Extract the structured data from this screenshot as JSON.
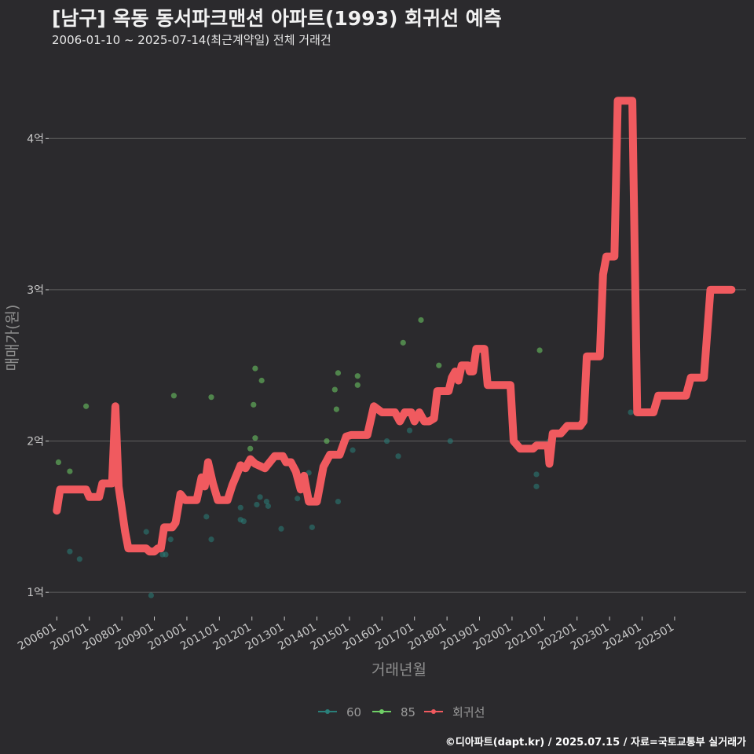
{
  "header": {
    "title": "[남구] 옥동 동서파크맨션 아파트(1993) 회귀선 예측",
    "subtitle": "2006-01-10 ~ 2025-07-14(최근계약일) 전체 거래건"
  },
  "footer": {
    "caption": "©디아파트(dapt.kr) / 2025.07.15 / 자료=국토교통부 실거래가"
  },
  "colors": {
    "background": "#2b2a2d",
    "grid": "#5f5f5f",
    "series_60": "#2a7f7a",
    "series_85": "#6fcf66",
    "regression": "#f05a5f",
    "axis_text": "#c8c8c8"
  },
  "chart_data": {
    "type": "scatter",
    "title": "[남구] 옥동 동서파크맨션 아파트(1993) 회귀선 예측",
    "xlabel": "거래년월",
    "ylabel": "매매가(원)",
    "x_tick_labels": [
      "200601",
      "200701",
      "200801",
      "200901",
      "201001",
      "201101",
      "201201",
      "201301",
      "201401",
      "201501",
      "201601",
      "201701",
      "201801",
      "201901",
      "202001",
      "202101",
      "202201",
      "202301",
      "202401",
      "202501"
    ],
    "y_ticks": [
      1,
      2,
      3,
      4
    ],
    "y_tick_labels": [
      "1억",
      "2억",
      "3억",
      "4억"
    ],
    "y_unit": "억",
    "xlim": [
      2005.75,
      2027.2
    ],
    "ylim": [
      0.84,
      4.5
    ],
    "legend": {
      "position": "bottom",
      "entries": [
        "60",
        "85",
        "회귀선"
      ]
    },
    "series": [
      {
        "name": "60",
        "kind": "points",
        "points": [
          [
            2006.4,
            1.27
          ],
          [
            2006.7,
            1.22
          ],
          [
            2008.9,
            0.98
          ],
          [
            2008.75,
            1.4
          ],
          [
            2009.25,
            1.25
          ],
          [
            2009.35,
            1.25
          ],
          [
            2009.5,
            1.35
          ],
          [
            2010.6,
            1.5
          ],
          [
            2010.75,
            1.35
          ],
          [
            2011.65,
            1.56
          ],
          [
            2011.65,
            1.48
          ],
          [
            2011.75,
            1.47
          ],
          [
            2012.15,
            1.58
          ],
          [
            2012.25,
            1.63
          ],
          [
            2012.45,
            1.6
          ],
          [
            2012.5,
            1.57
          ],
          [
            2012.9,
            1.42
          ],
          [
            2013.4,
            1.62
          ],
          [
            2013.75,
            1.79
          ],
          [
            2013.85,
            1.43
          ],
          [
            2014.65,
            1.6
          ],
          [
            2015.1,
            1.94
          ],
          [
            2016.15,
            2.0
          ],
          [
            2016.5,
            1.9
          ],
          [
            2016.85,
            2.07
          ],
          [
            2018.1,
            2.0
          ],
          [
            2020.75,
            1.78
          ],
          [
            2020.75,
            1.7
          ],
          [
            2021.15,
            2.0
          ],
          [
            2023.65,
            2.19
          ],
          [
            2024.3,
            2.2
          ]
        ]
      },
      {
        "name": "85",
        "kind": "points",
        "points": [
          [
            2006.05,
            1.86
          ],
          [
            2006.4,
            1.8
          ],
          [
            2006.9,
            2.23
          ],
          [
            2009.6,
            2.3
          ],
          [
            2010.75,
            2.29
          ],
          [
            2011.95,
            1.95
          ],
          [
            2012.05,
            2.24
          ],
          [
            2012.1,
            2.02
          ],
          [
            2012.1,
            2.48
          ],
          [
            2012.3,
            2.4
          ],
          [
            2014.3,
            2.0
          ],
          [
            2014.55,
            2.34
          ],
          [
            2014.6,
            2.21
          ],
          [
            2014.65,
            2.45
          ],
          [
            2015.25,
            2.43
          ],
          [
            2015.25,
            2.37
          ],
          [
            2016.65,
            2.65
          ],
          [
            2017.2,
            2.8
          ],
          [
            2017.75,
            2.5
          ],
          [
            2020.85,
            2.6
          ]
        ]
      },
      {
        "name": "회귀선",
        "kind": "line",
        "points": [
          [
            2006.0,
            1.54
          ],
          [
            2006.1,
            1.68
          ],
          [
            2006.9,
            1.68
          ],
          [
            2007.0,
            1.63
          ],
          [
            2007.3,
            1.63
          ],
          [
            2007.4,
            1.72
          ],
          [
            2007.7,
            1.72
          ],
          [
            2007.8,
            2.23
          ],
          [
            2007.9,
            1.7
          ],
          [
            2008.1,
            1.4
          ],
          [
            2008.2,
            1.29
          ],
          [
            2008.75,
            1.29
          ],
          [
            2008.85,
            1.27
          ],
          [
            2009.0,
            1.27
          ],
          [
            2009.1,
            1.29
          ],
          [
            2009.2,
            1.29
          ],
          [
            2009.3,
            1.43
          ],
          [
            2009.55,
            1.43
          ],
          [
            2009.65,
            1.46
          ],
          [
            2009.8,
            1.65
          ],
          [
            2009.95,
            1.61
          ],
          [
            2010.3,
            1.61
          ],
          [
            2010.45,
            1.76
          ],
          [
            2010.55,
            1.7
          ],
          [
            2010.65,
            1.86
          ],
          [
            2010.8,
            1.72
          ],
          [
            2010.95,
            1.61
          ],
          [
            2011.25,
            1.61
          ],
          [
            2011.4,
            1.71
          ],
          [
            2011.65,
            1.84
          ],
          [
            2011.8,
            1.82
          ],
          [
            2011.95,
            1.88
          ],
          [
            2012.1,
            1.85
          ],
          [
            2012.4,
            1.82
          ],
          [
            2012.7,
            1.9
          ],
          [
            2012.95,
            1.9
          ],
          [
            2013.05,
            1.86
          ],
          [
            2013.2,
            1.86
          ],
          [
            2013.35,
            1.8
          ],
          [
            2013.5,
            1.68
          ],
          [
            2013.6,
            1.77
          ],
          [
            2013.75,
            1.6
          ],
          [
            2014.0,
            1.6
          ],
          [
            2014.2,
            1.83
          ],
          [
            2014.4,
            1.91
          ],
          [
            2014.7,
            1.91
          ],
          [
            2014.9,
            2.03
          ],
          [
            2015.05,
            2.04
          ],
          [
            2015.55,
            2.04
          ],
          [
            2015.75,
            2.23
          ],
          [
            2016.0,
            2.19
          ],
          [
            2016.4,
            2.19
          ],
          [
            2016.55,
            2.13
          ],
          [
            2016.7,
            2.19
          ],
          [
            2016.9,
            2.19
          ],
          [
            2017.0,
            2.13
          ],
          [
            2017.15,
            2.19
          ],
          [
            2017.3,
            2.13
          ],
          [
            2017.45,
            2.13
          ],
          [
            2017.6,
            2.15
          ],
          [
            2017.7,
            2.33
          ],
          [
            2018.05,
            2.33
          ],
          [
            2018.15,
            2.42
          ],
          [
            2018.25,
            2.46
          ],
          [
            2018.35,
            2.4
          ],
          [
            2018.45,
            2.5
          ],
          [
            2018.65,
            2.5
          ],
          [
            2018.7,
            2.46
          ],
          [
            2018.8,
            2.46
          ],
          [
            2018.9,
            2.61
          ],
          [
            2019.15,
            2.61
          ],
          [
            2019.25,
            2.37
          ],
          [
            2019.95,
            2.37
          ],
          [
            2020.05,
            2.0
          ],
          [
            2020.25,
            1.95
          ],
          [
            2020.65,
            1.95
          ],
          [
            2020.75,
            1.97
          ],
          [
            2021.1,
            1.97
          ],
          [
            2021.15,
            1.85
          ],
          [
            2021.25,
            2.05
          ],
          [
            2021.5,
            2.05
          ],
          [
            2021.7,
            2.1
          ],
          [
            2022.1,
            2.1
          ],
          [
            2022.2,
            2.13
          ],
          [
            2022.3,
            2.56
          ],
          [
            2022.7,
            2.56
          ],
          [
            2022.8,
            3.1
          ],
          [
            2022.9,
            3.22
          ],
          [
            2023.15,
            3.22
          ],
          [
            2023.25,
            4.25
          ],
          [
            2023.7,
            4.25
          ],
          [
            2023.85,
            2.19
          ],
          [
            2024.35,
            2.19
          ],
          [
            2024.5,
            2.3
          ],
          [
            2025.35,
            2.3
          ],
          [
            2025.5,
            2.42
          ],
          [
            2025.9,
            2.42
          ],
          [
            2026.1,
            3.0
          ],
          [
            2026.75,
            3.0
          ]
        ]
      }
    ]
  }
}
